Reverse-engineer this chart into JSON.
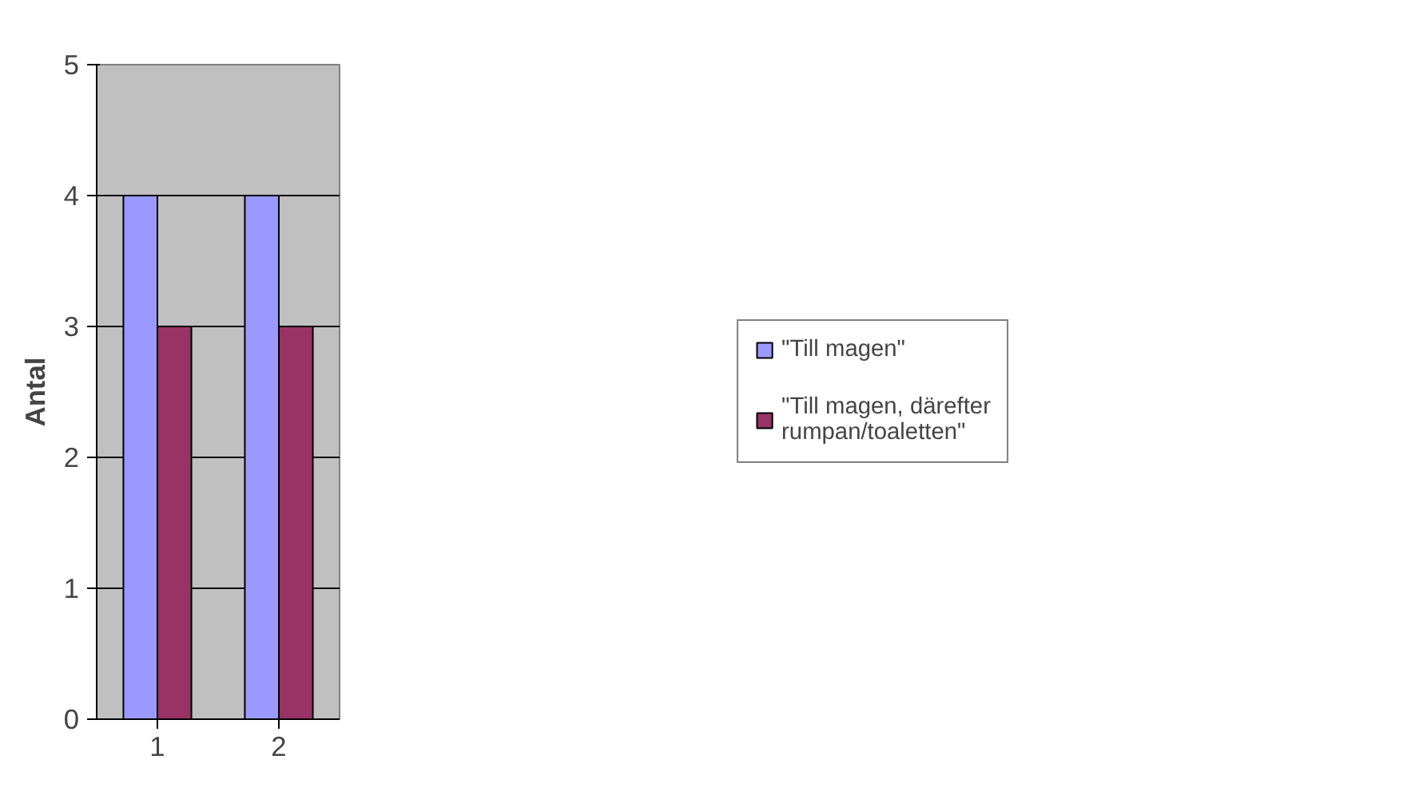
{
  "chart_data": {
    "type": "bar",
    "ylabel": "Antal",
    "categories": [
      "1",
      "2"
    ],
    "series": [
      {
        "name": "\"Till magen\"",
        "color": "#9999ff",
        "values": [
          4,
          4
        ]
      },
      {
        "name": "\"Till magen, därefter rumpan/toaletten\"",
        "color": "#993366",
        "values": [
          3,
          3
        ]
      }
    ],
    "ylim": [
      0,
      5
    ],
    "yticks": [
      0,
      1,
      2,
      3,
      4,
      5
    ],
    "grid": "y",
    "legend": "right"
  }
}
